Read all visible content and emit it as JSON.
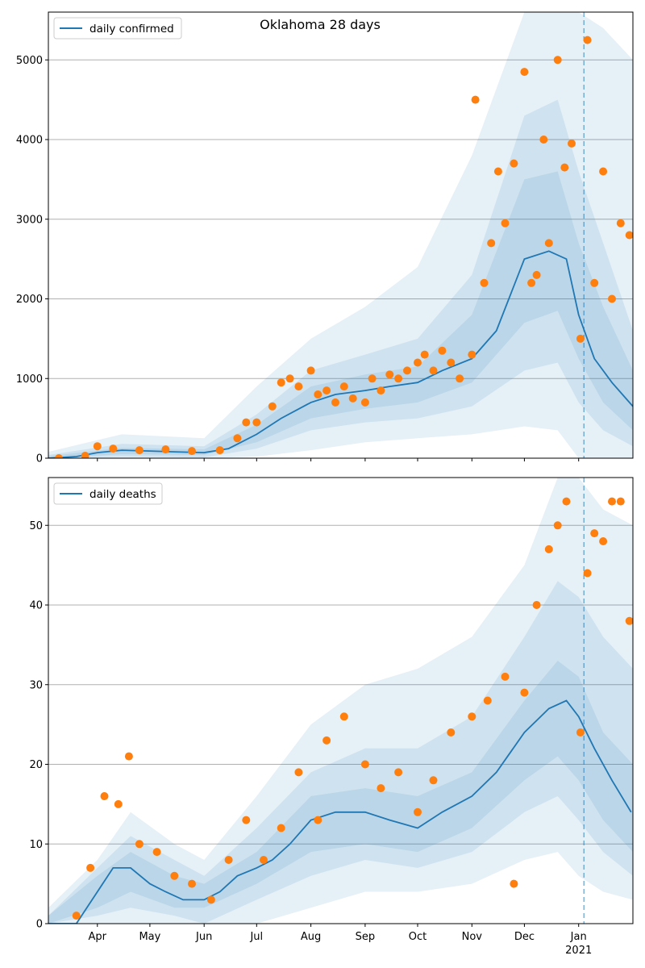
{
  "figure_title": "Oklahoma 28 days",
  "colors": {
    "model_line": "#1f77b4",
    "observed_points": "#ff7f0e",
    "band": "#1f77b4",
    "grid": "#b0b0b0",
    "projection_marker": "#1f77b4"
  },
  "x_axis": {
    "month_ticks": [
      {
        "label": "Apr",
        "date": "2020-04-01"
      },
      {
        "label": "May",
        "date": "2020-05-01"
      },
      {
        "label": "Jun",
        "date": "2020-06-01"
      },
      {
        "label": "Jul",
        "date": "2020-07-01"
      },
      {
        "label": "Aug",
        "date": "2020-08-01"
      },
      {
        "label": "Sep",
        "date": "2020-09-01"
      },
      {
        "label": "Oct",
        "date": "2020-10-01"
      },
      {
        "label": "Nov",
        "date": "2020-11-01"
      },
      {
        "label": "Dec",
        "date": "2020-12-01"
      },
      {
        "label": "Jan",
        "date": "2021-01-01"
      }
    ],
    "year_label": "2021",
    "xlim": [
      "2020-03-04",
      "2021-02-01"
    ],
    "projection_start": "2021-01-04"
  },
  "chart_data": [
    {
      "type": "line",
      "title": "Oklahoma 28 days",
      "legend": "top-left",
      "grid": "y",
      "ylim": [
        0,
        5600
      ],
      "yticks": [
        0,
        1000,
        2000,
        3000,
        4000,
        5000
      ],
      "series": [
        {
          "name": "daily confirmed",
          "kind": "line",
          "x": [
            "2020-03-04",
            "2020-03-20",
            "2020-04-01",
            "2020-04-15",
            "2020-05-01",
            "2020-05-15",
            "2020-06-01",
            "2020-06-15",
            "2020-07-01",
            "2020-07-15",
            "2020-08-01",
            "2020-08-15",
            "2020-09-01",
            "2020-09-15",
            "2020-10-01",
            "2020-10-15",
            "2020-11-01",
            "2020-11-15",
            "2020-12-01",
            "2020-12-15",
            "2020-12-25",
            "2021-01-01",
            "2021-01-10",
            "2021-01-20",
            "2021-02-01"
          ],
          "y": [
            0,
            20,
            70,
            100,
            90,
            80,
            70,
            120,
            300,
            500,
            700,
            800,
            850,
            900,
            950,
            1100,
            1250,
            1600,
            2500,
            2600,
            2500,
            1800,
            1250,
            950,
            650
          ]
        },
        {
          "name": "",
          "kind": "points",
          "x": [
            "2020-03-10",
            "2020-03-25",
            "2020-04-01",
            "2020-04-10",
            "2020-04-25",
            "2020-05-10",
            "2020-05-25",
            "2020-06-10",
            "2020-06-20",
            "2020-06-25",
            "2020-07-01",
            "2020-07-10",
            "2020-07-15",
            "2020-07-20",
            "2020-07-25",
            "2020-08-01",
            "2020-08-05",
            "2020-08-10",
            "2020-08-15",
            "2020-08-20",
            "2020-08-25",
            "2020-09-01",
            "2020-09-05",
            "2020-09-10",
            "2020-09-15",
            "2020-09-20",
            "2020-09-25",
            "2020-10-01",
            "2020-10-05",
            "2020-10-10",
            "2020-10-15",
            "2020-10-20",
            "2020-10-25",
            "2020-11-01",
            "2020-11-03",
            "2020-11-08",
            "2020-11-12",
            "2020-11-16",
            "2020-11-20",
            "2020-11-25",
            "2020-12-01",
            "2020-12-05",
            "2020-12-08",
            "2020-12-12",
            "2020-12-15",
            "2020-12-20",
            "2020-12-24",
            "2020-12-28",
            "2021-01-02",
            "2021-01-06",
            "2021-01-10",
            "2021-01-15",
            "2021-01-20",
            "2021-01-25",
            "2021-01-30"
          ],
          "y": [
            0,
            30,
            150,
            120,
            100,
            110,
            90,
            100,
            250,
            450,
            450,
            650,
            950,
            1000,
            900,
            1100,
            800,
            850,
            700,
            900,
            750,
            700,
            1000,
            850,
            1050,
            1000,
            1100,
            1200,
            1300,
            1100,
            1350,
            1200,
            1000,
            1300,
            4500,
            2200,
            2700,
            3600,
            2950,
            3700,
            4850,
            2200,
            2300,
            4000,
            2700,
            5000,
            3650,
            3950,
            1500,
            5250,
            2200,
            3600,
            2000,
            2950,
            2800
          ]
        }
      ],
      "bands": [
        {
          "label": "outer",
          "x": [
            "2020-03-04",
            "2020-04-15",
            "2020-06-01",
            "2020-07-01",
            "2020-08-01",
            "2020-09-01",
            "2020-10-01",
            "2020-11-01",
            "2020-12-01",
            "2020-12-20",
            "2021-01-01",
            "2021-01-15",
            "2021-02-01"
          ],
          "low": [
            0,
            0,
            0,
            20,
            100,
            200,
            250,
            300,
            400,
            350,
            0,
            0,
            0
          ],
          "high": [
            80,
            300,
            250,
            900,
            1500,
            1900,
            2400,
            3800,
            5600,
            5600,
            5600,
            5400,
            5000
          ]
        },
        {
          "label": "middle",
          "x": [
            "2020-03-04",
            "2020-04-15",
            "2020-06-01",
            "2020-07-01",
            "2020-08-01",
            "2020-09-01",
            "2020-10-01",
            "2020-11-01",
            "2020-12-01",
            "2020-12-20",
            "2021-01-01",
            "2021-01-15",
            "2021-02-01"
          ],
          "low": [
            0,
            20,
            10,
            120,
            350,
            450,
            500,
            650,
            1100,
            1200,
            700,
            350,
            150
          ],
          "high": [
            40,
            180,
            150,
            550,
            1100,
            1300,
            1500,
            2300,
            4300,
            4500,
            3600,
            2700,
            1600
          ]
        },
        {
          "label": "inner",
          "x": [
            "2020-03-04",
            "2020-04-15",
            "2020-06-01",
            "2020-07-01",
            "2020-08-01",
            "2020-09-01",
            "2020-10-01",
            "2020-11-01",
            "2020-12-01",
            "2020-12-20",
            "2021-01-01",
            "2021-01-15",
            "2021-02-01"
          ],
          "low": [
            0,
            50,
            40,
            200,
            500,
            620,
            700,
            950,
            1700,
            1850,
            1250,
            700,
            350
          ],
          "high": [
            25,
            130,
            110,
            420,
            900,
            1050,
            1150,
            1800,
            3500,
            3600,
            2700,
            1900,
            1100
          ]
        }
      ]
    },
    {
      "type": "line",
      "title": "",
      "legend": "top-left",
      "grid": "y",
      "ylim": [
        0,
        56
      ],
      "yticks": [
        0,
        10,
        20,
        30,
        40,
        50
      ],
      "series": [
        {
          "name": "daily deaths",
          "kind": "line",
          "x": [
            "2020-03-04",
            "2020-03-20",
            "2020-04-01",
            "2020-04-10",
            "2020-04-20",
            "2020-05-01",
            "2020-05-10",
            "2020-05-20",
            "2020-06-01",
            "2020-06-10",
            "2020-06-20",
            "2020-07-01",
            "2020-07-10",
            "2020-07-20",
            "2020-08-01",
            "2020-08-15",
            "2020-09-01",
            "2020-09-15",
            "2020-10-01",
            "2020-10-15",
            "2020-11-01",
            "2020-11-15",
            "2020-12-01",
            "2020-12-15",
            "2020-12-25",
            "2021-01-01",
            "2021-01-10",
            "2021-01-20",
            "2021-01-31"
          ],
          "y": [
            0,
            0,
            4,
            7,
            7,
            5,
            4,
            3,
            3,
            4,
            6,
            7,
            8,
            10,
            13,
            14,
            14,
            13,
            12,
            14,
            16,
            19,
            24,
            27,
            28,
            26,
            22,
            18,
            14
          ]
        },
        {
          "name": "",
          "kind": "points",
          "x": [
            "2020-03-20",
            "2020-03-28",
            "2020-04-05",
            "2020-04-13",
            "2020-04-19",
            "2020-04-25",
            "2020-05-05",
            "2020-05-15",
            "2020-05-25",
            "2020-06-05",
            "2020-06-15",
            "2020-06-25",
            "2020-07-05",
            "2020-07-15",
            "2020-07-25",
            "2020-08-05",
            "2020-08-10",
            "2020-08-20",
            "2020-09-01",
            "2020-09-10",
            "2020-09-20",
            "2020-10-01",
            "2020-10-10",
            "2020-10-20",
            "2020-11-01",
            "2020-11-10",
            "2020-11-20",
            "2020-11-25",
            "2020-12-01",
            "2020-12-08",
            "2020-12-15",
            "2020-12-20",
            "2020-12-25",
            "2021-01-02",
            "2021-01-06",
            "2021-01-10",
            "2021-01-15",
            "2021-01-20",
            "2021-01-25",
            "2021-01-30"
          ],
          "y": [
            1,
            7,
            16,
            15,
            21,
            10,
            9,
            6,
            5,
            3,
            8,
            13,
            8,
            12,
            19,
            13,
            23,
            26,
            20,
            17,
            19,
            14,
            18,
            24,
            26,
            28,
            31,
            5,
            29,
            40,
            47,
            50,
            53,
            24,
            44,
            49,
            48,
            53,
            53,
            38
          ]
        }
      ],
      "bands": [
        {
          "label": "outer",
          "x": [
            "2020-03-04",
            "2020-04-01",
            "2020-04-20",
            "2020-05-15",
            "2020-06-01",
            "2020-07-01",
            "2020-08-01",
            "2020-09-01",
            "2020-10-01",
            "2020-11-01",
            "2020-12-01",
            "2020-12-20",
            "2021-01-01",
            "2021-01-15",
            "2021-02-01"
          ],
          "low": [
            0,
            0,
            0,
            0,
            0,
            0,
            2,
            4,
            4,
            5,
            8,
            9,
            6,
            4,
            3
          ],
          "high": [
            2,
            8,
            14,
            10,
            8,
            16,
            25,
            30,
            32,
            36,
            45,
            56,
            56,
            52,
            50
          ]
        },
        {
          "label": "middle",
          "x": [
            "2020-03-04",
            "2020-04-01",
            "2020-04-20",
            "2020-05-15",
            "2020-06-01",
            "2020-07-01",
            "2020-08-01",
            "2020-09-01",
            "2020-10-01",
            "2020-11-01",
            "2020-12-01",
            "2020-12-20",
            "2021-01-01",
            "2021-01-15",
            "2021-02-01"
          ],
          "low": [
            0,
            1,
            2,
            1,
            0,
            3,
            6,
            8,
            7,
            9,
            14,
            16,
            13,
            9,
            6
          ],
          "high": [
            1,
            7,
            11,
            8,
            6,
            12,
            19,
            22,
            22,
            26,
            36,
            43,
            41,
            36,
            32
          ]
        },
        {
          "label": "inner",
          "x": [
            "2020-03-04",
            "2020-04-01",
            "2020-04-20",
            "2020-05-15",
            "2020-06-01",
            "2020-07-01",
            "2020-08-01",
            "2020-09-01",
            "2020-10-01",
            "2020-11-01",
            "2020-12-01",
            "2020-12-20",
            "2021-01-01",
            "2021-01-15",
            "2021-02-01"
          ],
          "low": [
            0,
            2,
            4,
            2,
            2,
            5,
            9,
            10,
            9,
            12,
            18,
            21,
            18,
            13,
            9
          ],
          "high": [
            1,
            6,
            9,
            6,
            5,
            9,
            16,
            17,
            16,
            19,
            28,
            33,
            31,
            24,
            20
          ]
        }
      ]
    }
  ]
}
